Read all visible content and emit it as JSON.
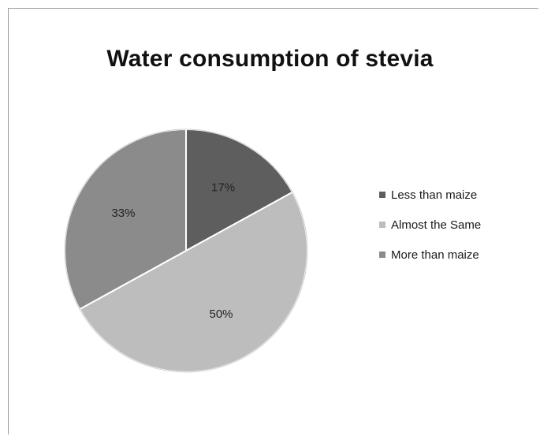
{
  "chart_data": {
    "type": "pie",
    "title": "Water consumption of stevia",
    "categories": [
      "Less than maize",
      "Almost the Same",
      "More than maize"
    ],
    "values": [
      17,
      50,
      33
    ],
    "labels": [
      "17%",
      "50%",
      "33%"
    ],
    "colors": [
      "#5e5e5e",
      "#bdbdbd",
      "#8b8b8b"
    ],
    "legend_position": "right"
  }
}
